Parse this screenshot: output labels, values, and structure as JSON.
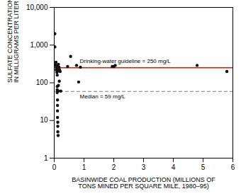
{
  "chart_data": {
    "type": "scatter",
    "xlabel": "BASINWIDE COAL PRODUCTION (MILLIONS OF\nTONS MINED PER SQUARE MILE, 1980–95)",
    "ylabel": "SULFATE CONCENTRATION,\nIN MILLIGRAMS PER LITER (mg/L)",
    "x": [
      0.02,
      0.02,
      0.04,
      0.06,
      0.07,
      0.07,
      0.08,
      0.08,
      0.09,
      0.09,
      0.09,
      0.1,
      0.1,
      0.1,
      0.1,
      0.11,
      0.11,
      0.11,
      0.11,
      0.12,
      0.12,
      0.12,
      0.13,
      0.13,
      0.14,
      0.14,
      0.15,
      0.16,
      0.17,
      0.18,
      0.2,
      0.22,
      0.45,
      0.55,
      0.75,
      0.82,
      0.88,
      1.95,
      2.0,
      2.05,
      4.8,
      5.8
    ],
    "values": [
      2000,
      900,
      300,
      350,
      270,
      220,
      260,
      220,
      280,
      230,
      190,
      160,
      80,
      65,
      55,
      35,
      25,
      18,
      12,
      9,
      7,
      5,
      4,
      60,
      85,
      310,
      210,
      260,
      110,
      220,
      200,
      60,
      270,
      500,
      290,
      105,
      260,
      270,
      270,
      290,
      290,
      200
    ],
    "color": "#111111",
    "marker": "circle",
    "xlim": [
      0,
      6
    ],
    "xticks": [
      0,
      1,
      2,
      3,
      4,
      5,
      6
    ],
    "ylim": [
      1,
      10000
    ],
    "yticks": [
      1,
      10,
      100,
      {
        "value": 1000,
        "label": "1,000"
      },
      {
        "value": 10000,
        "label": "10,000"
      }
    ],
    "log": "y",
    "grid": false,
    "reference_lines": [
      {
        "value": 250,
        "label": "Drinking-water guideline = 250 mg/L",
        "color": "#cc2200",
        "line_style": "solid"
      },
      {
        "value": 59,
        "label": "Median = 59 mg/L",
        "color": "#777777",
        "line_style": "dashed"
      }
    ]
  }
}
